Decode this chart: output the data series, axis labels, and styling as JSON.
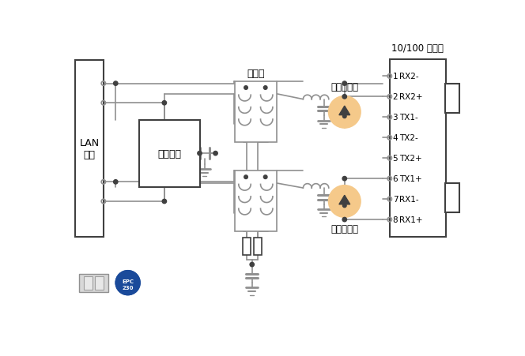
{
  "bg_color": "#ffffff",
  "line_color": "#909090",
  "dark_color": "#404040",
  "tvs_fill": "#f5c98a",
  "tvs_edge": "#c8a060",
  "lan_label": "LAN\n芯片",
  "sp_label": "二级保护",
  "tr_label": "变压器",
  "tvs_label": "浪涌放电管",
  "conn_label": "10/100 以太网",
  "connector_pins": [
    "RX2-",
    "RX2+",
    "TX1-",
    "TX2-",
    "TX2+",
    "TX1+",
    "RX1-",
    "RX1+"
  ],
  "connector_pin_nums": [
    "1",
    "2",
    "3",
    "4",
    "5",
    "6",
    "7",
    "8"
  ]
}
